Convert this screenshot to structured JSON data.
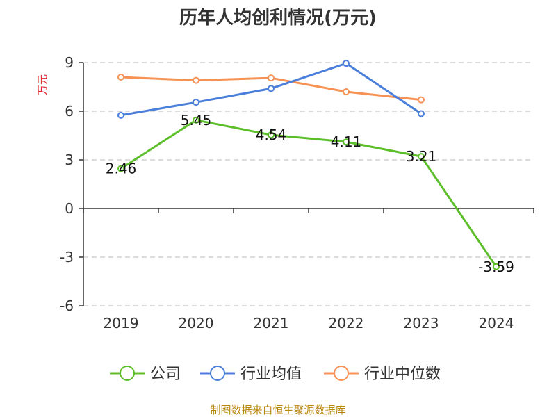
{
  "chart_data": {
    "type": "line",
    "title": "历年人均创利情况(万元)",
    "ylabel": "万元",
    "categories": [
      "2019",
      "2020",
      "2021",
      "2022",
      "2023",
      "2024"
    ],
    "ylim": [
      -6,
      9
    ],
    "yticks": [
      -6,
      -3,
      0,
      3,
      6,
      9
    ],
    "grid": true,
    "legend_position": "bottom",
    "series": [
      {
        "name": "公司",
        "color": "#5cbf2a",
        "values": [
          2.46,
          5.45,
          4.54,
          4.11,
          3.21,
          -3.59
        ],
        "data_labels": [
          "2.46",
          "5.45",
          "4.54",
          "4.11",
          "3.21",
          "-3.59"
        ]
      },
      {
        "name": "行业均值",
        "color": "#4a7fdb",
        "values": [
          5.75,
          6.55,
          7.4,
          8.95,
          5.85,
          null
        ]
      },
      {
        "name": "行业中位数",
        "color": "#f79255",
        "values": [
          8.1,
          7.9,
          8.05,
          7.2,
          6.7,
          null
        ]
      }
    ]
  },
  "source": "制图数据来自恒生聚源数据库"
}
